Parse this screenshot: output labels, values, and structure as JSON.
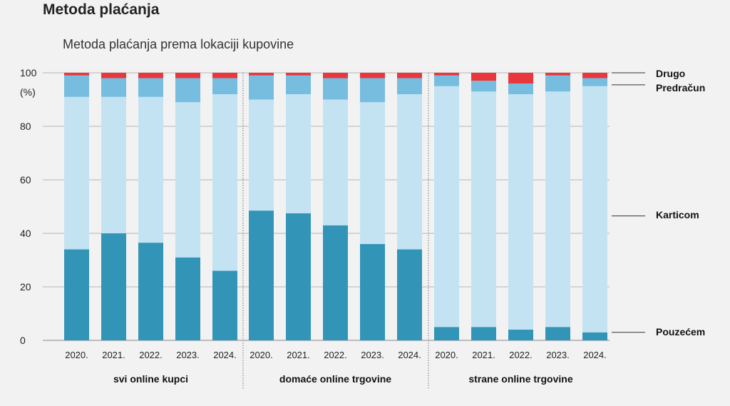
{
  "title": "Metoda plaćanja",
  "chart_data": {
    "type": "bar",
    "stacked": true,
    "title": "Metoda plaćanja prema lokaciji kupovine",
    "ylabel": "(%)",
    "ylim": [
      0,
      100
    ],
    "yticks": [
      0,
      20,
      40,
      60,
      80,
      100
    ],
    "grid": true,
    "legend_position": "right",
    "groups": [
      {
        "label": "svi online kupci",
        "categories": [
          "2020.",
          "2021.",
          "2022.",
          "2023.",
          "2024."
        ]
      },
      {
        "label": "domaće online trgovine",
        "categories": [
          "2020.",
          "2021.",
          "2022.",
          "2023.",
          "2024."
        ]
      },
      {
        "label": "strane online trgovine",
        "categories": [
          "2020.",
          "2021.",
          "2022.",
          "2023.",
          "2024."
        ]
      }
    ],
    "series": [
      {
        "name": "Pouzećem",
        "color": "#3295b8",
        "values": [
          34,
          40,
          36.5,
          31,
          26,
          48.5,
          47.5,
          43,
          36,
          34,
          5,
          5,
          4,
          5,
          3
        ]
      },
      {
        "name": "Karticom",
        "color": "#c3e3f3",
        "values": [
          57,
          51,
          54.5,
          58,
          66,
          41.5,
          44.5,
          47,
          53,
          58,
          90,
          88,
          88,
          88,
          92
        ]
      },
      {
        "name": "Predračun",
        "color": "#76bde0",
        "values": [
          8,
          7,
          7,
          9,
          6,
          9,
          7,
          8,
          9,
          6,
          4,
          4,
          4,
          6,
          3
        ]
      },
      {
        "name": "Drugo",
        "color": "#e8383d",
        "values": [
          1,
          2,
          2,
          2,
          2,
          1,
          1,
          2,
          2,
          2,
          1,
          3,
          4,
          1,
          2
        ]
      }
    ]
  }
}
